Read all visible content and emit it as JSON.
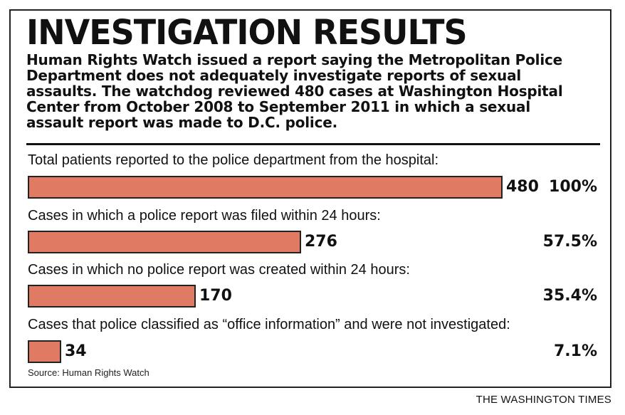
{
  "title": "INVESTIGATION RESULTS",
  "subtitle": "Human Rights Watch issued a report saying the Metropolitan Police Department does not adequately investigate reports of sexual assaults. The watchdog reviewed 480 cases at Washington Hospital Center from October 2008 to September 2011 in which a sexual assault report was made to D.C. police.",
  "source": "Source: Human Rights Watch",
  "credit": "THE WASHINGTON TIMES",
  "colors": {
    "bar": "#e07a63",
    "border": "#222222",
    "text": "#111111"
  },
  "chart_data": {
    "type": "bar",
    "orientation": "horizontal",
    "max": 480,
    "rows": [
      {
        "label": "Total patients reported to the police department from the hospital:",
        "value": 480,
        "value_label": "480",
        "percent_label": "100%"
      },
      {
        "label": "Cases in which a police report was filed within 24 hours:",
        "value": 276,
        "value_label": "276",
        "percent_label": "57.5%"
      },
      {
        "label": "Cases in which no police report was created within 24 hours:",
        "value": 170,
        "value_label": "170",
        "percent_label": "35.4%"
      },
      {
        "label": "Cases that police classified as “office information” and were not investigated:",
        "value": 34,
        "value_label": "34",
        "percent_label": "7.1%"
      }
    ]
  }
}
